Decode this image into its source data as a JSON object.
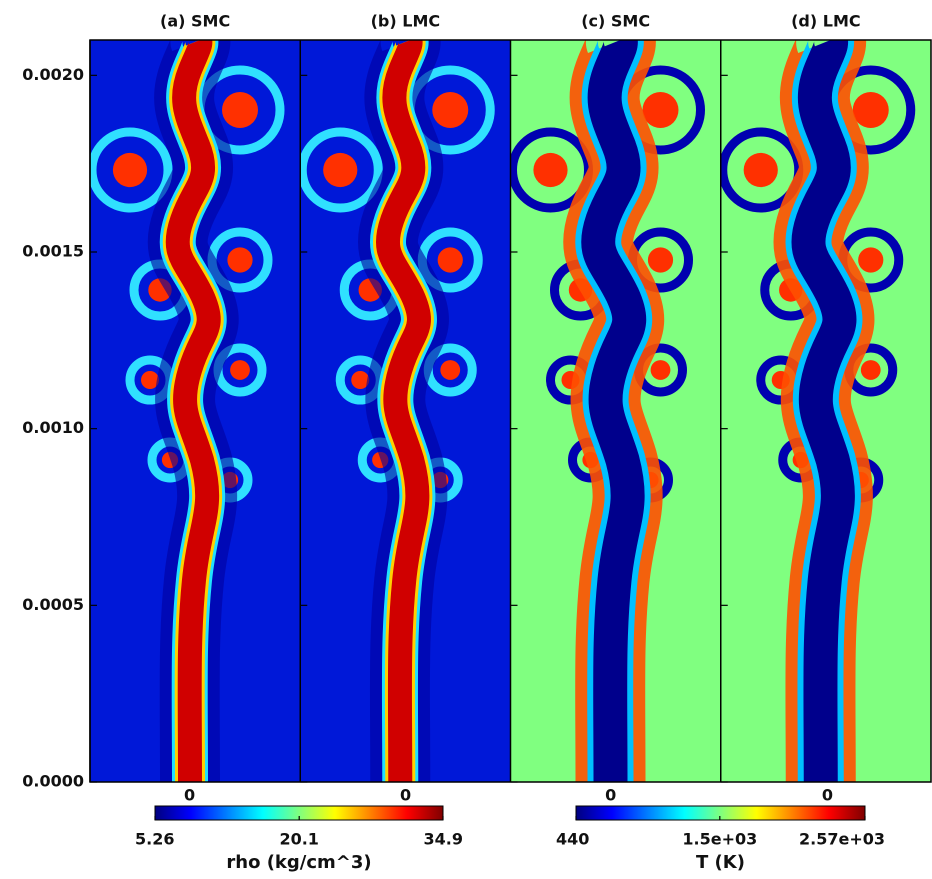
{
  "chart_data": {
    "type": "heatmap",
    "panel_titles": [
      "(a) SMC",
      "(b) LMC",
      "(c) SMC",
      "(d) LMC"
    ],
    "ylim": [
      0,
      0.0021
    ],
    "yticks": [
      {
        "value": 0,
        "label": "0.0000"
      },
      {
        "value": 0.0005,
        "label": "0.0005"
      },
      {
        "value": 0.001,
        "label": "0.0010"
      },
      {
        "value": 0.0015,
        "label": "0.0015"
      },
      {
        "value": 0.002,
        "label": "0.0020"
      }
    ],
    "colorbars": [
      {
        "label": "rho (kg/cm^3)",
        "lim": [
          5.26,
          34.9
        ],
        "ticks": [
          5.26,
          20.1,
          34.9
        ],
        "top_labels": [
          "0",
          "0"
        ],
        "colors": [
          "#00007f",
          "#0000ff",
          "#0080ff",
          "#00ffff",
          "#7fff7f",
          "#ffff00",
          "#ff8000",
          "#ff0000",
          "#7f0000"
        ]
      },
      {
        "label": "T (K)",
        "lim": [
          440,
          2570
        ],
        "ticks": [
          440,
          {
            "value": 1500,
            "label": "1.5e+03"
          },
          {
            "value": 2570,
            "label": "2.57e+03"
          }
        ],
        "top_labels": [
          "0",
          "0"
        ],
        "colors": [
          "#00007f",
          "#0000ff",
          "#0080ff",
          "#00ffff",
          "#7fff7f",
          "#ffff00",
          "#ff8000",
          "#ff0000",
          "#7f0000"
        ]
      }
    ]
  }
}
